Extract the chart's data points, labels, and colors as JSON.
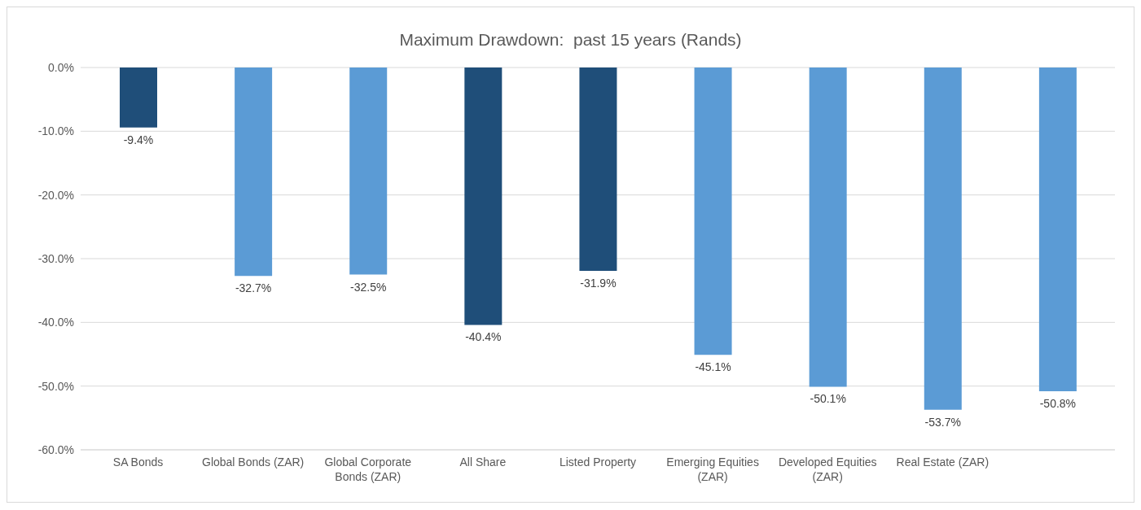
{
  "chart_data": {
    "type": "bar",
    "title": "Maximum Drawdown:  past 15 years (Rands)",
    "categories": [
      "SA Bonds",
      "Global Bonds (ZAR)",
      "Global Corporate Bonds (ZAR)",
      "All Share",
      "Listed Property",
      "Emerging Equities (ZAR)",
      "Developed Equities (ZAR)",
      "Real Estate (ZAR)",
      null
    ],
    "values": [
      -9.4,
      -32.7,
      -32.5,
      -40.4,
      -31.9,
      -45.1,
      -50.1,
      -53.7,
      -50.8
    ],
    "colors": [
      "#1f4e79",
      "#5b9bd5",
      "#5b9bd5",
      "#1f4e79",
      "#1f4e79",
      "#5b9bd5",
      "#5b9bd5",
      "#5b9bd5",
      "#5b9bd5"
    ],
    "value_labels": [
      "-9.4%",
      "-32.7%",
      "-32.5%",
      "-40.4%",
      "-31.9%",
      "-45.1%",
      "-50.1%",
      "-53.7%",
      "-50.8%"
    ],
    "ylim": [
      -60,
      0
    ],
    "yticks": [
      {
        "value": -60,
        "label": "-60.0%"
      },
      {
        "value": -50,
        "label": "-50.0%"
      },
      {
        "value": -40,
        "label": "-40.0%"
      },
      {
        "value": -30,
        "label": "-30.0%"
      },
      {
        "value": -20,
        "label": "-20.0%"
      },
      {
        "value": -10,
        "label": "-10.0%"
      },
      {
        "value": 0,
        "label": "0.0%"
      }
    ],
    "grid": "y"
  }
}
